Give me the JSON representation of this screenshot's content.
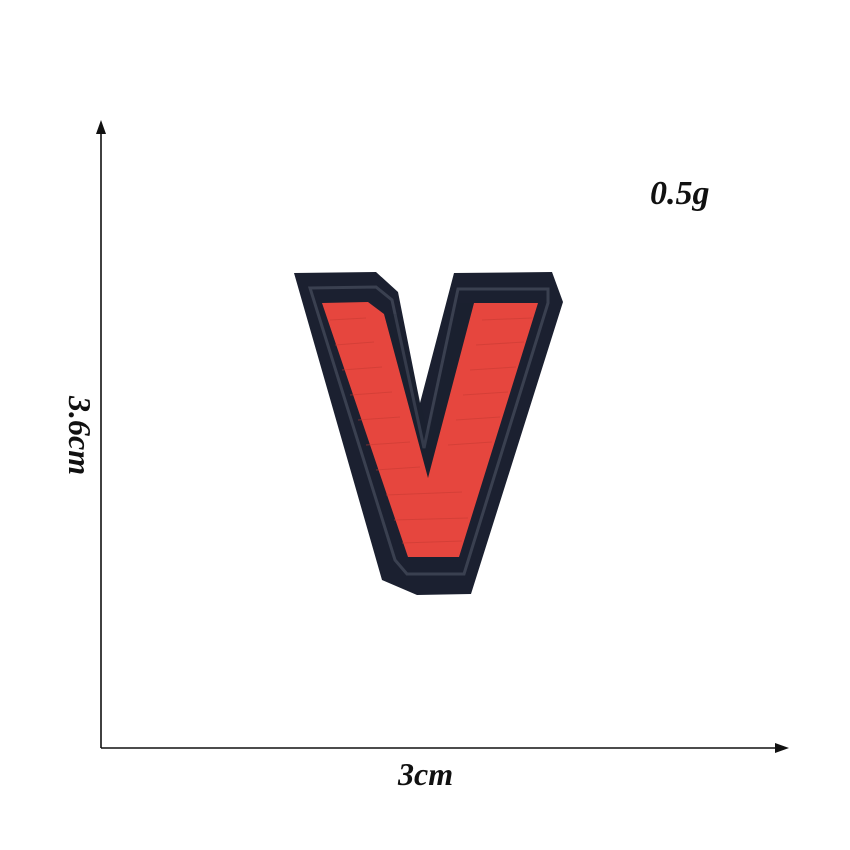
{
  "product": {
    "weight_label": "0.5g",
    "width_label": "3cm",
    "height_label": "3.6cm",
    "patch_letter_icon": "letter-v-patch",
    "colors": {
      "patch_border": "#1a1f2e",
      "patch_fill": "#e8473f",
      "stitch_line": "#2a2f3c",
      "axis": "#111111",
      "background": "#ffffff"
    }
  }
}
